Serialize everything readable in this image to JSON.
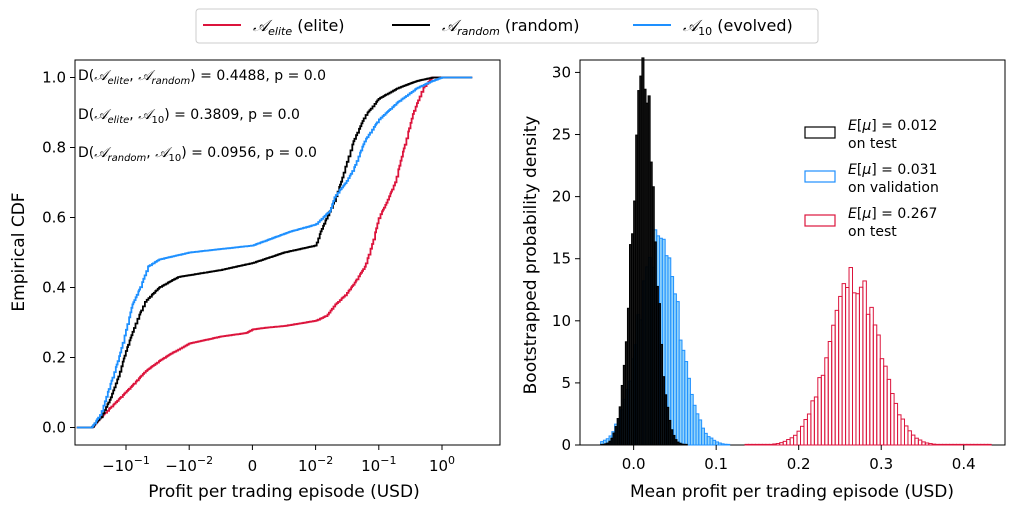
{
  "legend": {
    "items": [
      {
        "sym": "𝒜",
        "sub": "elite",
        "rest": " (elite)",
        "color": "#dc143c"
      },
      {
        "sym": "𝒜",
        "sub": "random",
        "rest": " (random)",
        "color": "#000000"
      },
      {
        "sym": "𝒜",
        "sub": "10",
        "rest": " (evolved)",
        "color": "#1e90ff"
      }
    ]
  },
  "chart_data": [
    {
      "type": "line",
      "title": "",
      "xlabel": "Profit per trading episode (USD)",
      "ylabel": "Empirical CDF",
      "xscale": "symlog",
      "xtick_labels": [
        {
          "base": "−10",
          "exp": "−1"
        },
        {
          "base": "−10",
          "exp": "−2"
        },
        {
          "base": "0",
          "exp": ""
        },
        {
          "base": "10",
          "exp": "−2"
        },
        {
          "base": "10",
          "exp": "−1"
        },
        {
          "base": "10",
          "exp": "0"
        }
      ],
      "ytick_labels": [
        "0.0",
        "0.2",
        "0.4",
        "0.6",
        "0.8",
        "1.0"
      ],
      "ylim": [
        -0.05,
        1.05
      ],
      "grid": false,
      "annotations": [
        {
          "parts": [
            "D(",
            "𝒜",
            "elite",
            ", ",
            "𝒜",
            "random",
            ") = 0.4488, p = 0.0"
          ]
        },
        {
          "parts": [
            "D(",
            "𝒜",
            "elite",
            ", ",
            "𝒜",
            "10",
            ") = 0.3809, p = 0.0"
          ]
        },
        {
          "parts": [
            "D(",
            "𝒜",
            "random",
            ", ",
            "𝒜",
            "10",
            ")  = 0.0956, p = 0.0"
          ]
        }
      ],
      "series": [
        {
          "name": "elite",
          "color": "#dc143c",
          "points": [
            [
              -0.6,
              0.0
            ],
            [
              -0.35,
              0.0
            ],
            [
              -0.25,
              0.03
            ],
            [
              -0.15,
              0.07
            ],
            [
              -0.08,
              0.12
            ],
            [
              -0.05,
              0.16
            ],
            [
              -0.03,
              0.19
            ],
            [
              -0.02,
              0.21
            ],
            [
              -0.01,
              0.24
            ],
            [
              -0.005,
              0.26
            ],
            [
              -0.001,
              0.27
            ],
            [
              0.0,
              0.28
            ],
            [
              0.002,
              0.285
            ],
            [
              0.005,
              0.29
            ],
            [
              0.01,
              0.305
            ],
            [
              0.015,
              0.32
            ],
            [
              0.02,
              0.35
            ],
            [
              0.03,
              0.38
            ],
            [
              0.04,
              0.41
            ],
            [
              0.06,
              0.46
            ],
            [
              0.08,
              0.53
            ],
            [
              0.1,
              0.6
            ],
            [
              0.13,
              0.64
            ],
            [
              0.18,
              0.7
            ],
            [
              0.25,
              0.8
            ],
            [
              0.35,
              0.9
            ],
            [
              0.5,
              0.97
            ],
            [
              0.7,
              1.0
            ],
            [
              3.0,
              1.0
            ]
          ]
        },
        {
          "name": "random",
          "color": "#000000",
          "points": [
            [
              -0.6,
              0.0
            ],
            [
              -0.35,
              0.0
            ],
            [
              -0.25,
              0.03
            ],
            [
              -0.18,
              0.08
            ],
            [
              -0.13,
              0.15
            ],
            [
              -0.1,
              0.22
            ],
            [
              -0.07,
              0.3
            ],
            [
              -0.05,
              0.36
            ],
            [
              -0.03,
              0.4
            ],
            [
              -0.015,
              0.43
            ],
            [
              -0.005,
              0.45
            ],
            [
              0.0,
              0.47
            ],
            [
              0.005,
              0.5
            ],
            [
              0.01,
              0.52
            ],
            [
              0.012,
              0.56
            ],
            [
              0.015,
              0.6
            ],
            [
              0.02,
              0.65
            ],
            [
              0.025,
              0.7
            ],
            [
              0.03,
              0.75
            ],
            [
              0.04,
              0.82
            ],
            [
              0.06,
              0.89
            ],
            [
              0.1,
              0.94
            ],
            [
              0.2,
              0.97
            ],
            [
              0.4,
              0.99
            ],
            [
              0.7,
              1.0
            ],
            [
              3.0,
              1.0
            ]
          ]
        },
        {
          "name": "evolved",
          "color": "#1e90ff",
          "points": [
            [
              -0.6,
              0.0
            ],
            [
              -0.35,
              0.0
            ],
            [
              -0.25,
              0.04
            ],
            [
              -0.18,
              0.12
            ],
            [
              -0.13,
              0.2
            ],
            [
              -0.1,
              0.28
            ],
            [
              -0.08,
              0.35
            ],
            [
              -0.06,
              0.4
            ],
            [
              -0.045,
              0.46
            ],
            [
              -0.03,
              0.48
            ],
            [
              -0.01,
              0.5
            ],
            [
              0.0,
              0.52
            ],
            [
              0.003,
              0.54
            ],
            [
              0.006,
              0.56
            ],
            [
              0.01,
              0.58
            ],
            [
              0.013,
              0.6
            ],
            [
              0.017,
              0.62
            ],
            [
              0.02,
              0.66
            ],
            [
              0.03,
              0.7
            ],
            [
              0.04,
              0.74
            ],
            [
              0.06,
              0.82
            ],
            [
              0.1,
              0.88
            ],
            [
              0.2,
              0.93
            ],
            [
              0.4,
              0.97
            ],
            [
              0.7,
              0.99
            ],
            [
              1.0,
              1.0
            ],
            [
              3.0,
              1.0
            ]
          ]
        }
      ]
    },
    {
      "type": "histogram",
      "title": "",
      "xlabel": "Mean profit per trading episode (USD)",
      "ylabel": "Bootstrapped probability density",
      "xlim": [
        -0.065,
        0.45
      ],
      "ylim": [
        0,
        31
      ],
      "xtick_labels": [
        "0.0",
        "0.1",
        "0.2",
        "0.3",
        "0.4"
      ],
      "ytick_labels": [
        "0",
        "5",
        "10",
        "15",
        "20",
        "25",
        "30"
      ],
      "grid": false,
      "legend": [
        {
          "expr": "E[μ] =  0.012",
          "line2": "on test",
          "edgecolor": "#000000",
          "fill": "#ffffff"
        },
        {
          "expr": "E[μ] =  0.031",
          "line2": "on validation",
          "edgecolor": "#1e90ff",
          "fill": "#ffffff"
        },
        {
          "expr": "E[μ] =  0.267",
          "line2": "on test",
          "edgecolor": "#dc143c",
          "fill": "#ffffff"
        }
      ],
      "series": [
        {
          "name": "random test",
          "mean": 0.012,
          "sd": 0.0135,
          "peak": 29.5,
          "binwidth": 0.0025,
          "range": [
            -0.04,
            0.065
          ],
          "edgecolor": "#000000",
          "fill": "#000000"
        },
        {
          "name": "evolved validation",
          "mean": 0.031,
          "sd": 0.024,
          "peak": 16.5,
          "binwidth": 0.0034,
          "range": [
            -0.04,
            0.115
          ],
          "edgecolor": "#1e90ff",
          "fill": "#87cefa"
        },
        {
          "name": "elite test",
          "mean": 0.267,
          "sd": 0.03,
          "peak": 13.5,
          "binwidth": 0.0042,
          "range": [
            0.135,
            0.43
          ],
          "edgecolor": "#dc143c",
          "fill": "#ffffff"
        }
      ]
    }
  ]
}
